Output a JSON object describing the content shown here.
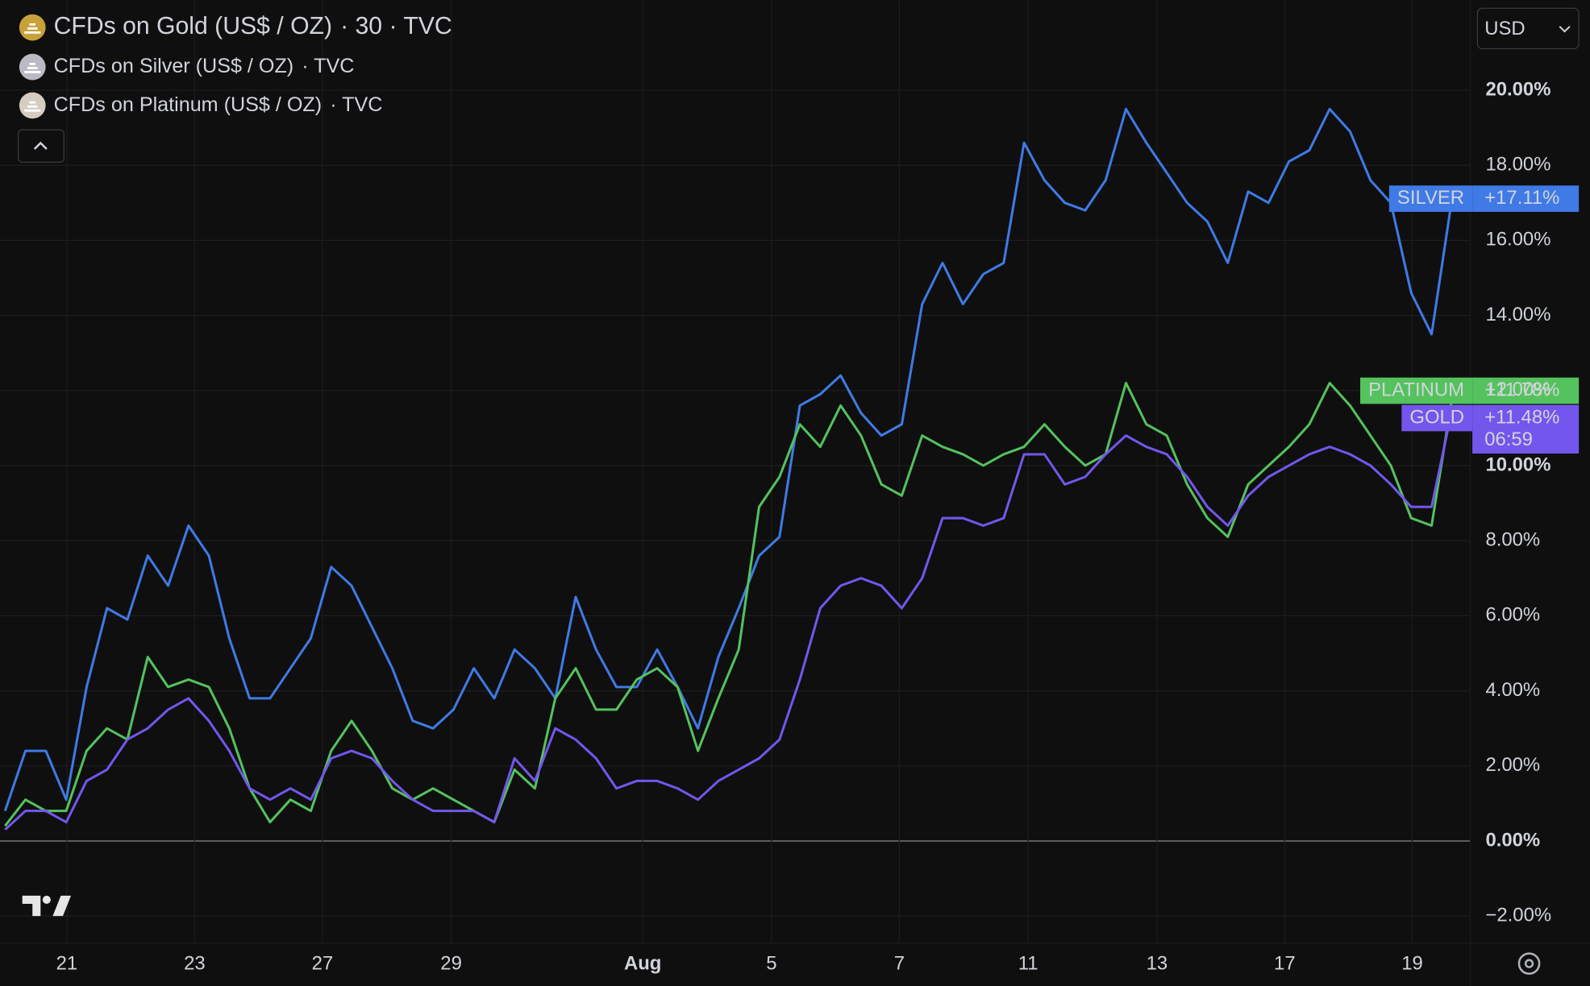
{
  "chart_data": {
    "type": "line",
    "currency": "USD",
    "countdown": "06:59",
    "x": [
      0,
      1,
      2,
      3,
      4,
      5,
      6,
      7,
      8,
      9,
      10,
      11,
      12,
      13,
      14,
      15,
      16,
      17,
      18,
      19,
      20,
      21,
      22,
      23,
      24,
      25,
      26,
      27,
      28,
      29,
      30,
      31,
      32,
      33,
      34,
      35,
      36,
      37,
      38,
      39,
      40,
      41,
      42,
      43,
      44,
      45,
      46,
      47,
      48,
      49,
      50,
      51,
      52,
      53,
      54,
      55,
      56,
      57,
      58,
      59,
      60,
      61,
      62,
      63,
      64,
      65,
      66,
      67,
      68,
      69,
      70,
      71
    ],
    "xlim": [
      -0.25,
      71.9
    ],
    "xticks": [
      {
        "value": 3.03,
        "label": "21"
      },
      {
        "value": 9.3,
        "label": "23"
      },
      {
        "value": 15.57,
        "label": "27"
      },
      {
        "value": 21.89,
        "label": "29"
      },
      {
        "value": 31.29,
        "label": "Aug"
      },
      {
        "value": 37.61,
        "label": "5"
      },
      {
        "value": 43.88,
        "label": "7"
      },
      {
        "value": 50.2,
        "label": "11"
      },
      {
        "value": 56.52,
        "label": "13"
      },
      {
        "value": 62.79,
        "label": "17"
      },
      {
        "value": 69.05,
        "label": "19"
      }
    ],
    "ylim": [
      -2.7,
      22.4
    ],
    "yticks": [
      {
        "value": -2,
        "label": "−2.00%"
      },
      {
        "value": 0,
        "label": "0.00%"
      },
      {
        "value": 2,
        "label": "2.00%"
      },
      {
        "value": 4,
        "label": "4.00%"
      },
      {
        "value": 6,
        "label": "6.00%"
      },
      {
        "value": 8,
        "label": "8.00%"
      },
      {
        "value": 10,
        "label": "10.00%"
      },
      {
        "value": 12,
        "label": "12.00%"
      },
      {
        "value": 14,
        "label": "14.00%"
      },
      {
        "value": 16,
        "label": "16.00%"
      },
      {
        "value": 18,
        "label": "18.00%"
      },
      {
        "value": 20,
        "label": "20.00%"
      }
    ],
    "grid": true,
    "series": [
      {
        "name": "CFDs on Gold (US$ / OZ)",
        "legend_suffix": "· 30 · TVC",
        "tag": "GOLD",
        "color": "#7356ec",
        "icon_color": "#c9a13b",
        "values": [
          0.3,
          0.8,
          0.8,
          0.5,
          1.6,
          1.9,
          2.7,
          3.0,
          3.5,
          3.8,
          3.2,
          2.4,
          1.4,
          1.1,
          1.4,
          1.1,
          2.2,
          2.4,
          2.2,
          1.6,
          1.1,
          0.8,
          0.8,
          0.8,
          0.5,
          2.2,
          1.6,
          3.0,
          2.7,
          2.2,
          1.4,
          1.6,
          1.6,
          1.4,
          1.1,
          1.6,
          1.9,
          2.2,
          2.7,
          4.3,
          6.2,
          6.8,
          7.0,
          6.8,
          6.2,
          7.0,
          8.6,
          8.6,
          8.4,
          8.6,
          10.3,
          10.3,
          9.5,
          9.7,
          10.3,
          10.8,
          10.5,
          10.3,
          9.7,
          8.9,
          8.4,
          9.2,
          9.7,
          10.0,
          10.3,
          10.5,
          10.3,
          10.0,
          9.5,
          8.9,
          8.9,
          11.48
        ],
        "value_labels": [
          null,
          null,
          null,
          null,
          null,
          null,
          null,
          null,
          null,
          null,
          null,
          null,
          null,
          null,
          null,
          null,
          null,
          null,
          null,
          null,
          null,
          null,
          null,
          null,
          null,
          null,
          null,
          null,
          null,
          null,
          null,
          null,
          null,
          null,
          null,
          null,
          null,
          null,
          null,
          null,
          null,
          null,
          null,
          null,
          null,
          null,
          null,
          null,
          null,
          null,
          null,
          null,
          null,
          null,
          null,
          null,
          null,
          null,
          null,
          null,
          null,
          null,
          null,
          null,
          null,
          null,
          null,
          null,
          null,
          null,
          null,
          "+11.48%"
        ]
      },
      {
        "name": "CFDs on Silver (US$ / OZ)",
        "legend_suffix": "· TVC",
        "tag": "SILVER",
        "color": "#3f7ae6",
        "icon_color": "#b9bac4",
        "values": [
          0.8,
          2.4,
          2.4,
          1.1,
          4.1,
          6.2,
          5.9,
          7.6,
          6.8,
          8.4,
          7.6,
          5.4,
          3.8,
          3.8,
          4.6,
          5.4,
          7.3,
          6.8,
          5.7,
          4.6,
          3.2,
          3.0,
          3.5,
          4.6,
          3.8,
          5.1,
          4.6,
          3.8,
          6.5,
          5.1,
          4.1,
          4.1,
          5.1,
          4.1,
          3.0,
          4.9,
          6.2,
          7.6,
          8.1,
          11.6,
          11.9,
          12.4,
          11.4,
          10.8,
          11.1,
          14.3,
          15.4,
          14.3,
          15.1,
          15.4,
          18.6,
          17.6,
          17.0,
          16.8,
          17.6,
          19.5,
          18.6,
          17.8,
          17.0,
          16.5,
          15.4,
          17.3,
          17.0,
          18.1,
          18.4,
          19.5,
          18.9,
          17.6,
          17.0,
          14.6,
          13.5,
          17.11
        ],
        "value_labels": [
          null,
          null,
          null,
          null,
          null,
          null,
          null,
          null,
          null,
          null,
          null,
          null,
          null,
          null,
          null,
          null,
          null,
          null,
          null,
          null,
          null,
          null,
          null,
          null,
          null,
          null,
          null,
          null,
          null,
          null,
          null,
          null,
          null,
          null,
          null,
          null,
          null,
          null,
          null,
          null,
          null,
          null,
          null,
          null,
          null,
          null,
          null,
          null,
          null,
          null,
          null,
          null,
          null,
          null,
          null,
          null,
          null,
          null,
          null,
          null,
          null,
          null,
          null,
          null,
          null,
          null,
          null,
          null,
          null,
          null,
          null,
          "+17.11%"
        ]
      },
      {
        "name": "CFDs on Platinum (US$ / OZ)",
        "legend_suffix": "· TVC",
        "tag": "PLATINUM",
        "color": "#54c25d",
        "icon_color": "#d6cdc2",
        "values": [
          0.4,
          1.1,
          0.8,
          0.8,
          2.4,
          3.0,
          2.7,
          4.9,
          4.1,
          4.3,
          4.1,
          3.0,
          1.4,
          0.5,
          1.1,
          0.8,
          2.4,
          3.2,
          2.4,
          1.4,
          1.1,
          1.4,
          1.1,
          0.8,
          0.5,
          1.9,
          1.4,
          3.8,
          4.6,
          3.5,
          3.5,
          4.3,
          4.6,
          4.1,
          2.4,
          3.8,
          5.1,
          8.9,
          9.7,
          11.1,
          10.5,
          11.6,
          10.8,
          9.5,
          9.2,
          10.8,
          10.5,
          10.3,
          10.0,
          10.3,
          10.5,
          11.1,
          10.5,
          10.0,
          10.3,
          12.2,
          11.1,
          10.8,
          9.5,
          8.6,
          8.1,
          9.5,
          10.0,
          10.5,
          11.1,
          12.2,
          11.6,
          10.8,
          10.0,
          8.6,
          8.4,
          11.78
        ],
        "value_labels": [
          null,
          null,
          null,
          null,
          null,
          null,
          null,
          null,
          null,
          null,
          null,
          null,
          null,
          null,
          null,
          null,
          null,
          null,
          null,
          null,
          null,
          null,
          null,
          null,
          null,
          null,
          null,
          null,
          null,
          null,
          null,
          null,
          null,
          null,
          null,
          null,
          null,
          null,
          null,
          null,
          null,
          null,
          null,
          null,
          null,
          null,
          null,
          null,
          null,
          null,
          null,
          null,
          null,
          null,
          null,
          null,
          null,
          null,
          null,
          null,
          null,
          null,
          null,
          null,
          null,
          null,
          null,
          null,
          null,
          null,
          null,
          "+11.78%"
        ]
      }
    ]
  }
}
